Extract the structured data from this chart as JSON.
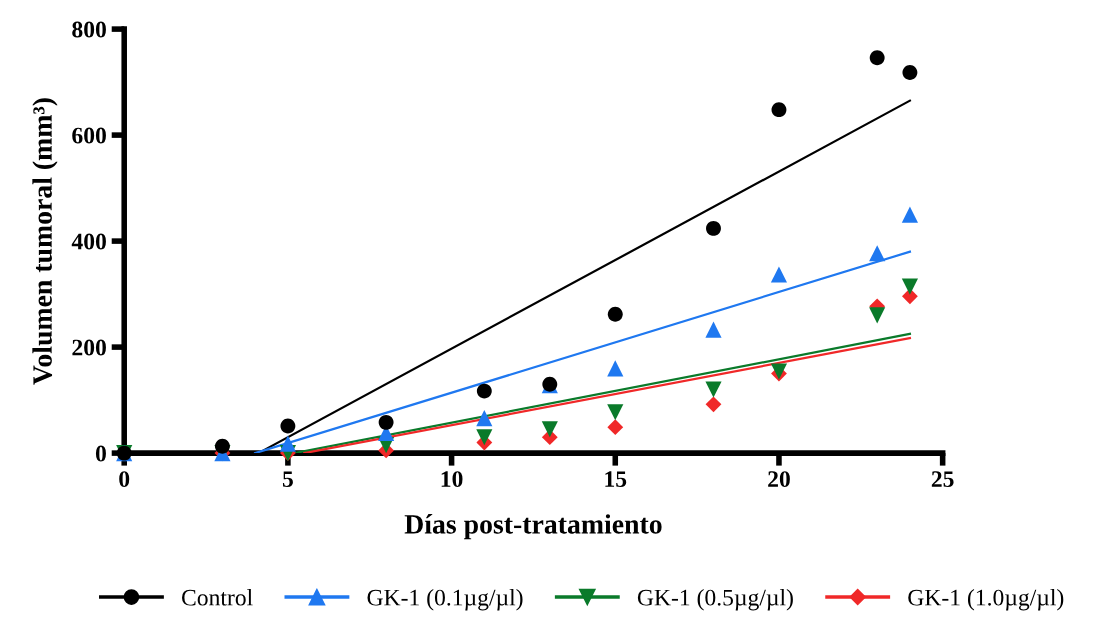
{
  "chart_data": {
    "type": "scatter",
    "xlabel": "Días post-tratamiento",
    "ylabel": "Volumen tumoral (mm³)",
    "xlim": [
      0,
      25
    ],
    "xticks": [
      0,
      5,
      10,
      15,
      20,
      25
    ],
    "ylim": [
      0,
      800
    ],
    "yticks": [
      0,
      200,
      400,
      600,
      800
    ],
    "grid": false,
    "legend": "bottom",
    "series": [
      {
        "name": "Control",
        "color": "#000000",
        "marker": "circle",
        "x": [
          0,
          3,
          5,
          8,
          11,
          13,
          15,
          18,
          20,
          23,
          24
        ],
        "values": [
          0,
          13,
          51,
          58,
          117,
          130,
          262,
          424,
          648,
          746,
          718
        ]
      },
      {
        "name": "GK-1 (0.1µg/µl)",
        "color": "#1f78f0",
        "marker": "triangle",
        "x": [
          0,
          3,
          5,
          8,
          11,
          13,
          15,
          18,
          20,
          23,
          24
        ],
        "values": [
          0,
          0,
          18,
          38,
          66,
          128,
          160,
          233,
          337,
          377,
          450
        ]
      },
      {
        "name": "GK-1 (0.5µg/µl)",
        "color": "#0a7a2a",
        "marker": "triangle_down",
        "x": [
          0,
          3,
          5,
          8,
          11,
          13,
          15,
          18,
          20,
          23,
          24
        ],
        "values": [
          0,
          0,
          0,
          15,
          30,
          45,
          77,
          120,
          154,
          260,
          314
        ]
      },
      {
        "name": "GK-1 (1.0µg/µl)",
        "color": "#f02828",
        "marker": "diamond",
        "x": [
          3,
          5,
          8,
          11,
          13,
          15,
          18,
          20,
          23,
          24
        ],
        "values": [
          0,
          0,
          5,
          20,
          30,
          49,
          92,
          150,
          277,
          296
        ]
      },
      {
        "type": "line",
        "color": "#000000",
        "x": [
          4.1,
          24
        ],
        "values": [
          0,
          665
        ]
      },
      {
        "type": "line",
        "color": "#1f78f0",
        "x": [
          4.0,
          24
        ],
        "values": [
          0,
          380
        ]
      },
      {
        "type": "line",
        "color": "#0a7a2a",
        "x": [
          5.2,
          24
        ],
        "values": [
          0,
          225
        ]
      },
      {
        "type": "line",
        "color": "#f02828",
        "x": [
          5.5,
          24
        ],
        "values": [
          0,
          217
        ]
      }
    ]
  }
}
